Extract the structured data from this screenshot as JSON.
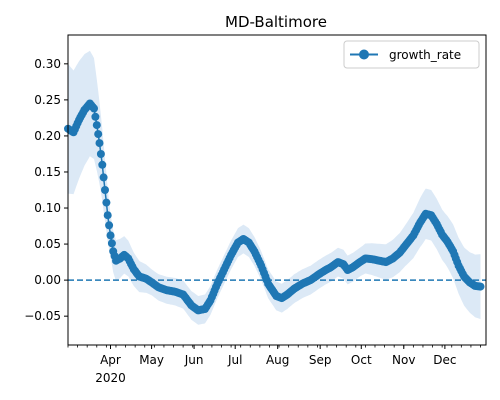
{
  "chart_data": {
    "type": "line",
    "title": "MD-Baltimore",
    "xlabel": "",
    "ylabel": "",
    "x_range": [
      "2020-03-01",
      "2020-12-31"
    ],
    "ylim": [
      -0.09,
      0.34
    ],
    "y_ticks": [
      -0.05,
      0.0,
      0.05,
      0.1,
      0.15,
      0.2,
      0.25,
      0.3
    ],
    "y_tick_labels": [
      "−0.05",
      "0.00",
      "0.05",
      "0.10",
      "0.15",
      "0.20",
      "0.25",
      "0.30"
    ],
    "x_ticks": [
      {
        "date": "2020-04-01",
        "label": "Apr",
        "sublabel": "2020"
      },
      {
        "date": "2020-05-01",
        "label": "May"
      },
      {
        "date": "2020-06-01",
        "label": "Jun"
      },
      {
        "date": "2020-07-01",
        "label": "Jul"
      },
      {
        "date": "2020-08-01",
        "label": "Aug"
      },
      {
        "date": "2020-09-01",
        "label": "Sep"
      },
      {
        "date": "2020-10-01",
        "label": "Oct"
      },
      {
        "date": "2020-11-01",
        "label": "Nov"
      },
      {
        "date": "2020-12-01",
        "label": "Dec"
      }
    ],
    "grid": false,
    "legend": "upper right",
    "reference_line": {
      "y": 0.0,
      "style": "dashed"
    },
    "colors": {
      "line": "#1f77b4",
      "band": "#dce9f6",
      "ref": "#1f77b4"
    },
    "series": [
      {
        "name": "growth_rate",
        "points": [
          [
            "2020-03-01",
            0.21
          ],
          [
            "2020-03-05",
            0.205
          ],
          [
            "2020-03-09",
            0.222
          ],
          [
            "2020-03-13",
            0.236
          ],
          [
            "2020-03-17",
            0.245
          ],
          [
            "2020-03-20",
            0.238
          ],
          [
            "2020-03-22",
            0.215
          ],
          [
            "2020-03-24",
            0.19
          ],
          [
            "2020-03-26",
            0.16
          ],
          [
            "2020-03-28",
            0.125
          ],
          [
            "2020-03-30",
            0.09
          ],
          [
            "2020-04-01",
            0.062
          ],
          [
            "2020-04-03",
            0.04
          ],
          [
            "2020-04-05",
            0.027
          ],
          [
            "2020-04-08",
            0.03
          ],
          [
            "2020-04-11",
            0.035
          ],
          [
            "2020-04-14",
            0.03
          ],
          [
            "2020-04-18",
            0.015
          ],
          [
            "2020-04-22",
            0.005
          ],
          [
            "2020-04-27",
            0.002
          ],
          [
            "2020-05-01",
            -0.003
          ],
          [
            "2020-05-06",
            -0.01
          ],
          [
            "2020-05-12",
            -0.014
          ],
          [
            "2020-05-18",
            -0.016
          ],
          [
            "2020-05-24",
            -0.02
          ],
          [
            "2020-05-30",
            -0.035
          ],
          [
            "2020-06-04",
            -0.042
          ],
          [
            "2020-06-09",
            -0.04
          ],
          [
            "2020-06-13",
            -0.028
          ],
          [
            "2020-06-18",
            -0.005
          ],
          [
            "2020-06-23",
            0.015
          ],
          [
            "2020-06-28",
            0.035
          ],
          [
            "2020-07-03",
            0.052
          ],
          [
            "2020-07-07",
            0.057
          ],
          [
            "2020-07-11",
            0.052
          ],
          [
            "2020-07-15",
            0.04
          ],
          [
            "2020-07-20",
            0.02
          ],
          [
            "2020-07-25",
            -0.005
          ],
          [
            "2020-07-31",
            -0.022
          ],
          [
            "2020-08-04",
            -0.025
          ],
          [
            "2020-08-08",
            -0.02
          ],
          [
            "2020-08-13",
            -0.012
          ],
          [
            "2020-08-19",
            -0.005
          ],
          [
            "2020-08-25",
            0.0
          ],
          [
            "2020-08-31",
            0.008
          ],
          [
            "2020-09-05",
            0.014
          ],
          [
            "2020-09-09",
            0.018
          ],
          [
            "2020-09-14",
            0.025
          ],
          [
            "2020-09-18",
            0.022
          ],
          [
            "2020-09-21",
            0.014
          ],
          [
            "2020-09-25",
            0.018
          ],
          [
            "2020-09-30",
            0.025
          ],
          [
            "2020-10-04",
            0.03
          ],
          [
            "2020-10-09",
            0.029
          ],
          [
            "2020-10-14",
            0.027
          ],
          [
            "2020-10-19",
            0.025
          ],
          [
            "2020-10-24",
            0.03
          ],
          [
            "2020-10-29",
            0.038
          ],
          [
            "2020-11-03",
            0.05
          ],
          [
            "2020-11-08",
            0.062
          ],
          [
            "2020-11-13",
            0.08
          ],
          [
            "2020-11-17",
            0.092
          ],
          [
            "2020-11-21",
            0.09
          ],
          [
            "2020-11-25",
            0.078
          ],
          [
            "2020-11-29",
            0.063
          ],
          [
            "2020-12-03",
            0.053
          ],
          [
            "2020-12-07",
            0.04
          ],
          [
            "2020-12-11",
            0.02
          ],
          [
            "2020-12-15",
            0.005
          ],
          [
            "2020-12-19",
            -0.003
          ],
          [
            "2020-12-23",
            -0.008
          ],
          [
            "2020-12-27",
            -0.009
          ]
        ],
        "band_width": [
          [
            "2020-03-01",
            0.09
          ],
          [
            "2020-03-20",
            0.07
          ],
          [
            "2020-04-01",
            0.03
          ],
          [
            "2020-05-01",
            0.018
          ],
          [
            "2020-06-01",
            0.02
          ],
          [
            "2020-07-01",
            0.02
          ],
          [
            "2020-08-01",
            0.02
          ],
          [
            "2020-09-01",
            0.02
          ],
          [
            "2020-10-01",
            0.02
          ],
          [
            "2020-11-01",
            0.028
          ],
          [
            "2020-11-15",
            0.035
          ],
          [
            "2020-12-01",
            0.035
          ],
          [
            "2020-12-27",
            0.045
          ]
        ]
      }
    ]
  }
}
